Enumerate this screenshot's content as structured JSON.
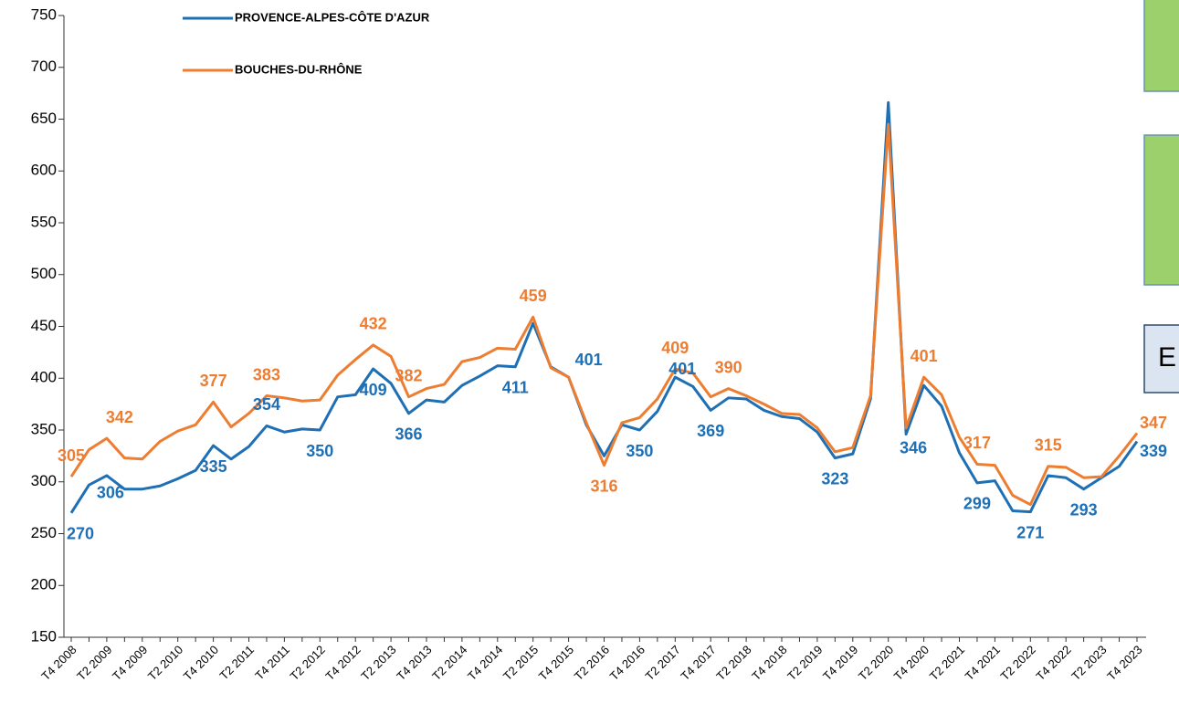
{
  "chart_data": {
    "type": "line",
    "categories": [
      "T4 2008",
      null,
      "T2 2009",
      null,
      "T4 2009",
      null,
      "T2 2010",
      null,
      "T4 2010",
      null,
      "T2 2011",
      null,
      "T4 2011",
      null,
      "T2 2012",
      null,
      "T4 2012",
      null,
      "T2 2013",
      null,
      "T4 2013",
      null,
      "T2 2014",
      null,
      "T4 2014",
      null,
      "T2 2015",
      null,
      "T4 2015",
      null,
      "T2 2016",
      null,
      "T4 2016",
      null,
      "T2 2017",
      null,
      "T4 2017",
      null,
      "T2 2018",
      null,
      "T4 2018",
      null,
      "T2 2019",
      null,
      "T4 2019",
      null,
      "T2 2020",
      null,
      "T4 2020",
      null,
      "T2 2021",
      null,
      "T4 2021",
      null,
      "T2 2022",
      null,
      "T4 2022",
      null,
      "T2 2023",
      null,
      "T4 2023"
    ],
    "series": [
      {
        "name": "PROVENCE-ALPES-CÔTE D'AZUR",
        "color": "#1f6fb5",
        "values": [
          270,
          297,
          306,
          293,
          293,
          296,
          303,
          311,
          335,
          322,
          334,
          354,
          348,
          351,
          350,
          382,
          384,
          409,
          395,
          366,
          379,
          377,
          393,
          402,
          412,
          411,
          453,
          411,
          401,
          355,
          325,
          355,
          350,
          368,
          401,
          392,
          369,
          381,
          380,
          369,
          363,
          361,
          348,
          323,
          327,
          380,
          666,
          346,
          393,
          373,
          328,
          299,
          301,
          272,
          271,
          306,
          304,
          293,
          304,
          315,
          339
        ],
        "value_labels": [
          "270",
          null,
          "306",
          null,
          null,
          null,
          null,
          null,
          "335",
          null,
          null,
          "354",
          null,
          null,
          "350",
          null,
          null,
          "409",
          null,
          "366",
          null,
          null,
          null,
          null,
          null,
          "411",
          null,
          null,
          "401",
          null,
          null,
          null,
          "350",
          null,
          "401",
          null,
          "369",
          null,
          null,
          null,
          null,
          null,
          null,
          "323",
          null,
          null,
          null,
          "346",
          null,
          null,
          null,
          "299",
          null,
          null,
          "271",
          null,
          null,
          "293",
          null,
          null,
          "339"
        ]
      },
      {
        "name": "BOUCHES-DU-RHÔNE",
        "color": "#ed7d31",
        "values": [
          305,
          331,
          342,
          323,
          322,
          339,
          349,
          355,
          377,
          353,
          366,
          383,
          381,
          378,
          379,
          403,
          418,
          432,
          421,
          382,
          390,
          394,
          416,
          420,
          429,
          428,
          459,
          410,
          401,
          357,
          316,
          357,
          362,
          380,
          409,
          405,
          382,
          390,
          383,
          375,
          366,
          365,
          352,
          329,
          333,
          383,
          645,
          352,
          401,
          384,
          343,
          317,
          316,
          287,
          278,
          315,
          314,
          304,
          305,
          325,
          347
        ],
        "value_labels": [
          "305",
          null,
          "342",
          null,
          null,
          null,
          null,
          null,
          "377",
          null,
          null,
          "383",
          null,
          null,
          null,
          null,
          null,
          "432",
          null,
          "382",
          null,
          null,
          null,
          null,
          null,
          null,
          "459",
          null,
          null,
          null,
          "316",
          null,
          null,
          null,
          "409",
          null,
          null,
          "390",
          null,
          null,
          null,
          null,
          null,
          null,
          null,
          null,
          null,
          null,
          "401",
          null,
          null,
          "317",
          null,
          null,
          null,
          "315",
          null,
          null,
          null,
          null,
          "347"
        ]
      }
    ],
    "ylim": [
      150,
      750
    ],
    "yticks": [
      150,
      200,
      250,
      300,
      350,
      400,
      450,
      500,
      550,
      600,
      650,
      700,
      750
    ],
    "legend": "top-left",
    "overlay_text": "E"
  }
}
